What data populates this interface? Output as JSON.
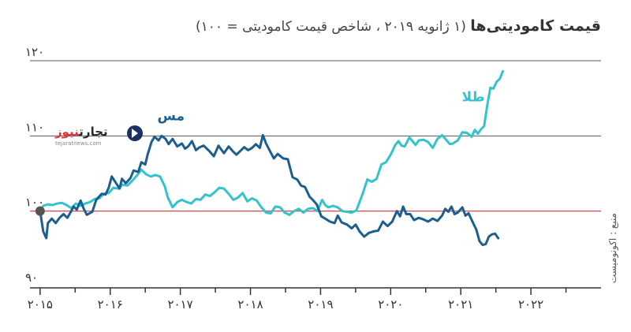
{
  "title": {
    "main": "قیمت کامودیتی‌ها",
    "sub": " (۱ ژانویه ۲۰۱۹ ، شاخص قیمت کامودیتی = ۱۰۰)"
  },
  "source": "منبع : اکونومیست",
  "logo": {
    "name_a": "تجارت",
    "name_b": "نیوز",
    "site": "tejaratnews.com"
  },
  "chart_data": {
    "type": "line",
    "title": "قیمت کامودیتی‌ها (۱ ژانویه ۲۰۱۹ ، شاخص قیمت کامودیتی = ۱۰۰)",
    "ylim": [
      90,
      120
    ],
    "y_ticks": [
      {
        "value": 90,
        "label": "۹۰"
      },
      {
        "value": 100,
        "label": "۱۰۰"
      },
      {
        "value": 110,
        "label": "۱۱۰"
      },
      {
        "value": 120,
        "label": "۱۲۰"
      }
    ],
    "xlim": [
      2014.87,
      2022.2
    ],
    "x_ticks": [
      {
        "value": 2015.0,
        "label": "۲۰۱۵"
      },
      {
        "value": 2015.9,
        "label": "۲۰۱۶"
      },
      {
        "value": 2016.8,
        "label": "۲۰۱۷"
      },
      {
        "value": 2017.7,
        "label": "۲۰۱۸"
      },
      {
        "value": 2018.6,
        "label": "۲۰۱۹"
      },
      {
        "value": 2019.5,
        "label": "۲۰۲۰"
      },
      {
        "value": 2020.4,
        "label": "۲۰۲۱"
      },
      {
        "value": 2021.3,
        "label": "۲۰۲۲"
      }
    ],
    "x_minor_ticks": [
      2015.45,
      2016.35,
      2017.25,
      2018.15,
      2019.05,
      2019.95,
      2020.85,
      2021.75
    ],
    "reference_line": {
      "value": 100,
      "color": "#e8474f"
    },
    "start_point": {
      "x": 2015.0,
      "y": 100
    },
    "series": [
      {
        "name": "مس",
        "color": "#1b5e8f",
        "points": [
          [
            2015.0,
            100
          ],
          [
            2015.04,
            97.3
          ],
          [
            2015.08,
            96.4
          ],
          [
            2015.1,
            98.4
          ],
          [
            2015.15,
            99.0
          ],
          [
            2015.2,
            98.4
          ],
          [
            2015.25,
            99.1
          ],
          [
            2015.3,
            99.6
          ],
          [
            2015.35,
            99.1
          ],
          [
            2015.4,
            100.0
          ],
          [
            2015.43,
            100.6
          ],
          [
            2015.47,
            100.2
          ],
          [
            2015.52,
            101.4
          ],
          [
            2015.56,
            100.3
          ],
          [
            2015.6,
            99.5
          ],
          [
            2015.67,
            99.9
          ],
          [
            2015.72,
            101.5
          ],
          [
            2015.79,
            102.3
          ],
          [
            2015.84,
            102.2
          ],
          [
            2015.88,
            103.1
          ],
          [
            2015.92,
            104.6
          ],
          [
            2015.97,
            103.8
          ],
          [
            2016.02,
            103.0
          ],
          [
            2016.05,
            104.3
          ],
          [
            2016.1,
            103.7
          ],
          [
            2016.16,
            104.4
          ],
          [
            2016.2,
            105.4
          ],
          [
            2016.26,
            105.2
          ],
          [
            2016.3,
            106.5
          ],
          [
            2016.35,
            106.2
          ],
          [
            2016.38,
            107.5
          ],
          [
            2016.43,
            109.2
          ],
          [
            2016.47,
            109.9
          ],
          [
            2016.52,
            109.4
          ],
          [
            2016.56,
            110.0
          ],
          [
            2016.61,
            109.6
          ],
          [
            2016.65,
            108.9
          ],
          [
            2016.7,
            109.6
          ],
          [
            2016.76,
            108.6
          ],
          [
            2016.82,
            109.0
          ],
          [
            2016.86,
            108.3
          ],
          [
            2016.9,
            108.6
          ],
          [
            2016.95,
            109.3
          ],
          [
            2017.0,
            108.1
          ],
          [
            2017.05,
            108.5
          ],
          [
            2017.1,
            108.7
          ],
          [
            2017.17,
            108.0
          ],
          [
            2017.23,
            107.3
          ],
          [
            2017.29,
            108.7
          ],
          [
            2017.36,
            107.7
          ],
          [
            2017.42,
            108.6
          ],
          [
            2017.47,
            108.0
          ],
          [
            2017.52,
            107.5
          ],
          [
            2017.57,
            108.0
          ],
          [
            2017.62,
            108.5
          ],
          [
            2017.67,
            108.1
          ],
          [
            2017.72,
            108.4
          ],
          [
            2017.77,
            108.9
          ],
          [
            2017.82,
            108.4
          ],
          [
            2017.86,
            110.1
          ],
          [
            2017.9,
            109.0
          ],
          [
            2017.95,
            108.0
          ],
          [
            2018.0,
            107.0
          ],
          [
            2018.05,
            107.6
          ],
          [
            2018.12,
            107.0
          ],
          [
            2018.18,
            106.9
          ],
          [
            2018.24,
            104.5
          ],
          [
            2018.3,
            104.2
          ],
          [
            2018.35,
            103.4
          ],
          [
            2018.4,
            103.2
          ],
          [
            2018.46,
            101.9
          ],
          [
            2018.5,
            101.5
          ],
          [
            2018.55,
            100.9
          ],
          [
            2018.61,
            99.3
          ],
          [
            2018.66,
            99.0
          ],
          [
            2018.72,
            98.6
          ],
          [
            2018.78,
            98.4
          ],
          [
            2018.82,
            99.4
          ],
          [
            2018.87,
            98.5
          ],
          [
            2018.94,
            98.2
          ],
          [
            2019.0,
            97.7
          ],
          [
            2019.05,
            98.2
          ],
          [
            2019.1,
            97.3
          ],
          [
            2019.16,
            96.6
          ],
          [
            2019.22,
            97.1
          ],
          [
            2019.28,
            97.3
          ],
          [
            2019.34,
            97.4
          ],
          [
            2019.4,
            98.6
          ],
          [
            2019.46,
            98.0
          ],
          [
            2019.52,
            98.6
          ],
          [
            2019.58,
            100.0
          ],
          [
            2019.62,
            99.3
          ],
          [
            2019.66,
            100.6
          ],
          [
            2019.7,
            99.6
          ],
          [
            2019.75,
            99.6
          ],
          [
            2019.8,
            98.8
          ],
          [
            2019.86,
            99.1
          ],
          [
            2019.92,
            98.9
          ],
          [
            2019.98,
            98.6
          ],
          [
            2020.04,
            99.0
          ],
          [
            2020.1,
            98.7
          ],
          [
            2020.16,
            99.4
          ],
          [
            2020.2,
            100.3
          ],
          [
            2020.24,
            99.9
          ],
          [
            2020.28,
            100.6
          ],
          [
            2020.32,
            99.6
          ],
          [
            2020.36,
            99.8
          ],
          [
            2020.42,
            100.5
          ],
          [
            2020.46,
            99.4
          ],
          [
            2020.5,
            99.7
          ],
          [
            2020.55,
            98.6
          ],
          [
            2020.6,
            97.5
          ],
          [
            2020.64,
            96.0
          ],
          [
            2020.68,
            95.5
          ],
          [
            2020.72,
            95.6
          ],
          [
            2020.76,
            96.6
          ],
          [
            2020.8,
            96.9
          ],
          [
            2020.84,
            97.0
          ],
          [
            2020.88,
            96.4
          ]
        ]
      },
      {
        "name": "طلا",
        "color": "#34c3cc",
        "points": [
          [
            2015.0,
            100
          ],
          [
            2015.04,
            100.7
          ],
          [
            2015.1,
            100.9
          ],
          [
            2015.16,
            100.8
          ],
          [
            2015.22,
            101.0
          ],
          [
            2015.28,
            101.1
          ],
          [
            2015.34,
            100.8
          ],
          [
            2015.4,
            100.4
          ],
          [
            2015.46,
            101.0
          ],
          [
            2015.52,
            100.7
          ],
          [
            2015.58,
            101.0
          ],
          [
            2015.64,
            101.2
          ],
          [
            2015.7,
            101.6
          ],
          [
            2015.76,
            101.7
          ],
          [
            2015.82,
            102.3
          ],
          [
            2015.88,
            102.4
          ],
          [
            2015.94,
            103.1
          ],
          [
            2016.0,
            103.0
          ],
          [
            2016.06,
            103.5
          ],
          [
            2016.12,
            103.4
          ],
          [
            2016.18,
            104.0
          ],
          [
            2016.24,
            104.7
          ],
          [
            2016.3,
            105.5
          ],
          [
            2016.36,
            104.9
          ],
          [
            2016.42,
            104.6
          ],
          [
            2016.48,
            104.8
          ],
          [
            2016.54,
            104.6
          ],
          [
            2016.6,
            103.3
          ],
          [
            2016.64,
            101.8
          ],
          [
            2016.7,
            100.5
          ],
          [
            2016.76,
            101.2
          ],
          [
            2016.82,
            101.5
          ],
          [
            2016.88,
            101.2
          ],
          [
            2016.94,
            101.0
          ],
          [
            2017.0,
            101.6
          ],
          [
            2017.06,
            101.5
          ],
          [
            2017.12,
            102.2
          ],
          [
            2017.18,
            102.0
          ],
          [
            2017.24,
            102.5
          ],
          [
            2017.3,
            103.1
          ],
          [
            2017.36,
            103.0
          ],
          [
            2017.42,
            102.3
          ],
          [
            2017.48,
            101.5
          ],
          [
            2017.54,
            101.8
          ],
          [
            2017.6,
            102.4
          ],
          [
            2017.66,
            101.3
          ],
          [
            2017.72,
            101.7
          ],
          [
            2017.78,
            101.4
          ],
          [
            2017.84,
            100.5
          ],
          [
            2017.9,
            99.8
          ],
          [
            2017.96,
            99.7
          ],
          [
            2018.02,
            100.6
          ],
          [
            2018.08,
            100.5
          ],
          [
            2018.14,
            99.8
          ],
          [
            2018.2,
            99.5
          ],
          [
            2018.26,
            100.0
          ],
          [
            2018.32,
            100.3
          ],
          [
            2018.38,
            99.8
          ],
          [
            2018.44,
            100.3
          ],
          [
            2018.5,
            100.4
          ],
          [
            2018.56,
            100.0
          ],
          [
            2018.62,
            101.5
          ],
          [
            2018.66,
            100.8
          ],
          [
            2018.7,
            100.5
          ],
          [
            2018.76,
            100.7
          ],
          [
            2018.82,
            100.5
          ],
          [
            2018.88,
            100.0
          ],
          [
            2018.94,
            99.9
          ],
          [
            2019.0,
            99.8
          ],
          [
            2019.06,
            100.1
          ],
          [
            2019.1,
            101.2
          ],
          [
            2019.14,
            102.3
          ],
          [
            2019.2,
            104.2
          ],
          [
            2019.26,
            103.9
          ],
          [
            2019.32,
            104.3
          ],
          [
            2019.38,
            106.2
          ],
          [
            2019.44,
            106.5
          ],
          [
            2019.5,
            107.5
          ],
          [
            2019.56,
            108.8
          ],
          [
            2019.6,
            109.3
          ],
          [
            2019.64,
            108.7
          ],
          [
            2019.68,
            108.6
          ],
          [
            2019.74,
            109.8
          ],
          [
            2019.78,
            109.3
          ],
          [
            2019.82,
            108.8
          ],
          [
            2019.86,
            109.4
          ],
          [
            2019.92,
            109.5
          ],
          [
            2019.98,
            109.2
          ],
          [
            2020.04,
            108.4
          ],
          [
            2020.1,
            109.6
          ],
          [
            2020.16,
            110.1
          ],
          [
            2020.22,
            109.4
          ],
          [
            2020.26,
            108.9
          ],
          [
            2020.3,
            109.0
          ],
          [
            2020.36,
            109.4
          ],
          [
            2020.42,
            110.5
          ],
          [
            2020.48,
            110.4
          ],
          [
            2020.54,
            109.9
          ],
          [
            2020.58,
            110.8
          ],
          [
            2020.62,
            110.3
          ],
          [
            2020.66,
            110.9
          ],
          [
            2020.7,
            111.3
          ],
          [
            2020.74,
            114.1
          ],
          [
            2020.78,
            116.4
          ],
          [
            2020.82,
            116.3
          ],
          [
            2020.86,
            117.2
          ],
          [
            2020.9,
            117.6
          ],
          [
            2020.94,
            118.6
          ]
        ]
      }
    ],
    "annotations": [
      {
        "text": "مس",
        "series": "مس",
        "x": 2016.68,
        "y": 112.1
      },
      {
        "text": "طلا",
        "series": "طلا",
        "x": 2020.56,
        "y": 114.6
      }
    ]
  }
}
